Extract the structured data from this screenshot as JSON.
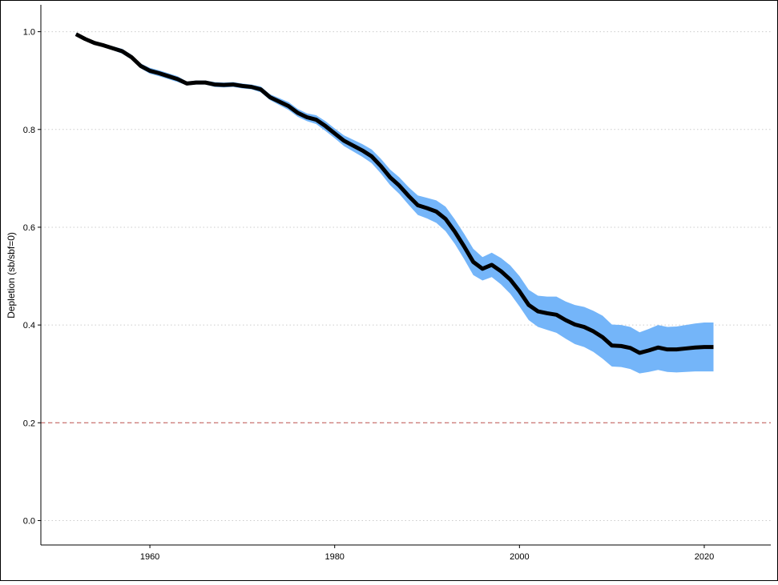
{
  "chart_data": {
    "type": "line",
    "title": "",
    "xlabel": "",
    "ylabel": "Depletion (sb/sbf=0)",
    "xlim": [
      1948.2,
      2027.2
    ],
    "ylim": [
      -0.05,
      1.055
    ],
    "xticks": [
      1960,
      1980,
      2000,
      2020
    ],
    "xtick_labels": [
      "1960",
      "1980",
      "2000",
      "2020"
    ],
    "yticks": [
      0.0,
      0.2,
      0.4,
      0.6,
      0.8,
      1.0
    ],
    "ytick_labels": [
      "0.0",
      "0.2",
      "0.4",
      "0.6",
      "0.8",
      "1.0"
    ],
    "grid": "horizontal-dotted",
    "reference_line": {
      "y": 0.2,
      "style": "dashed",
      "color": "#c0504d"
    },
    "colors": {
      "line": "#000000",
      "band": "#74b5f9",
      "grid": "#cccccc",
      "axis": "#000000"
    },
    "x": [
      1952,
      1953,
      1954,
      1955,
      1956,
      1957,
      1958,
      1959,
      1960,
      1961,
      1962,
      1963,
      1964,
      1965,
      1966,
      1967,
      1968,
      1969,
      1970,
      1971,
      1972,
      1973,
      1974,
      1975,
      1976,
      1977,
      1978,
      1979,
      1980,
      1981,
      1982,
      1983,
      1984,
      1985,
      1986,
      1987,
      1988,
      1989,
      1990,
      1991,
      1992,
      1993,
      1994,
      1995,
      1996,
      1997,
      1998,
      1999,
      2000,
      2001,
      2002,
      2003,
      2004,
      2005,
      2006,
      2007,
      2008,
      2009,
      2010,
      2011,
      2012,
      2013,
      2014,
      2015,
      2016,
      2017,
      2018,
      2019,
      2020,
      2021
    ],
    "series": [
      {
        "values": [
          0.995,
          0.985,
          0.977,
          0.972,
          0.966,
          0.96,
          0.948,
          0.93,
          0.92,
          0.915,
          0.909,
          0.903,
          0.894,
          0.896,
          0.896,
          0.892,
          0.891,
          0.892,
          0.889,
          0.887,
          0.882,
          0.866,
          0.857,
          0.848,
          0.834,
          0.825,
          0.82,
          0.807,
          0.792,
          0.777,
          0.767,
          0.757,
          0.745,
          0.725,
          0.702,
          0.685,
          0.664,
          0.645,
          0.639,
          0.632,
          0.617,
          0.591,
          0.561,
          0.529,
          0.515,
          0.523,
          0.51,
          0.493,
          0.469,
          0.441,
          0.428,
          0.424,
          0.421,
          0.41,
          0.401,
          0.396,
          0.387,
          0.375,
          0.358,
          0.357,
          0.353,
          0.343,
          0.348,
          0.354,
          0.35,
          0.35,
          0.352,
          0.354,
          0.355,
          0.355
        ],
        "lower": [
          0.993,
          0.982,
          0.974,
          0.969,
          0.962,
          0.955,
          0.943,
          0.925,
          0.914,
          0.909,
          0.903,
          0.897,
          0.89,
          0.892,
          0.892,
          0.887,
          0.886,
          0.887,
          0.884,
          0.882,
          0.876,
          0.86,
          0.85,
          0.84,
          0.826,
          0.817,
          0.811,
          0.797,
          0.782,
          0.766,
          0.755,
          0.744,
          0.731,
          0.71,
          0.686,
          0.668,
          0.646,
          0.625,
          0.618,
          0.609,
          0.592,
          0.566,
          0.535,
          0.502,
          0.491,
          0.498,
          0.483,
          0.464,
          0.438,
          0.41,
          0.396,
          0.39,
          0.384,
          0.372,
          0.361,
          0.355,
          0.345,
          0.331,
          0.315,
          0.314,
          0.31,
          0.301,
          0.304,
          0.308,
          0.304,
          0.303,
          0.304,
          0.305,
          0.305,
          0.305
        ],
        "upper": [
          0.997,
          0.988,
          0.98,
          0.975,
          0.97,
          0.965,
          0.953,
          0.935,
          0.926,
          0.921,
          0.915,
          0.909,
          0.898,
          0.9,
          0.9,
          0.897,
          0.896,
          0.897,
          0.894,
          0.892,
          0.888,
          0.872,
          0.864,
          0.856,
          0.842,
          0.833,
          0.829,
          0.817,
          0.802,
          0.788,
          0.779,
          0.77,
          0.759,
          0.74,
          0.718,
          0.702,
          0.682,
          0.665,
          0.66,
          0.655,
          0.642,
          0.616,
          0.587,
          0.556,
          0.539,
          0.548,
          0.537,
          0.522,
          0.5,
          0.472,
          0.46,
          0.458,
          0.458,
          0.448,
          0.441,
          0.437,
          0.429,
          0.419,
          0.401,
          0.4,
          0.396,
          0.385,
          0.392,
          0.4,
          0.396,
          0.397,
          0.4,
          0.403,
          0.405,
          0.405
        ]
      }
    ]
  }
}
